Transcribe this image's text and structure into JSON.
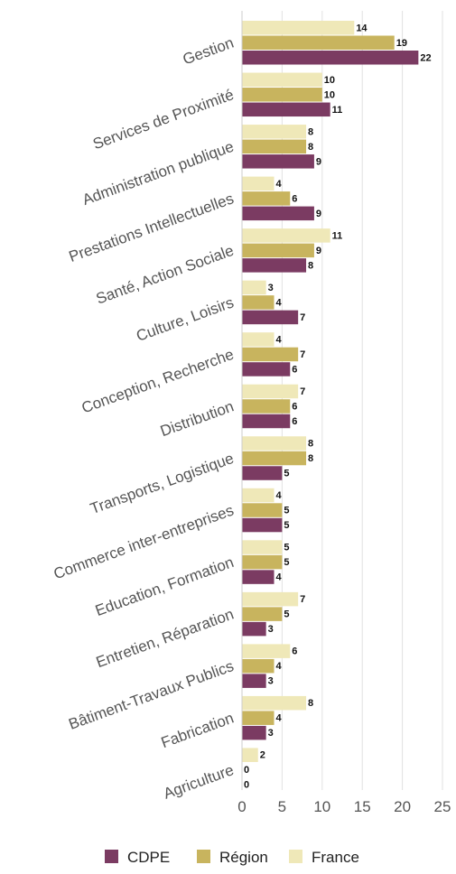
{
  "chart_data": {
    "type": "bar",
    "orientation": "horizontal",
    "categories": [
      "Gestion",
      "Services de Proximité",
      "Administration publique",
      "Prestations Intellectuelles",
      "Santé, Action Sociale",
      "Culture, Loisirs",
      "Conception, Recherche",
      "Distribution",
      "Transports, Logistique",
      "Commerce inter-entreprises",
      "Education, Formation",
      "Entretien, Réparation",
      "Bâtiment-Travaux Publics",
      "Fabrication",
      "Agriculture"
    ],
    "series": [
      {
        "name": "France",
        "color": "#efe8b8",
        "values": [
          14,
          10,
          8,
          4,
          11,
          3,
          4,
          7,
          8,
          4,
          5,
          7,
          6,
          8,
          2
        ]
      },
      {
        "name": "Région",
        "color": "#c8b45e",
        "values": [
          19,
          10,
          8,
          6,
          9,
          4,
          7,
          6,
          8,
          5,
          5,
          5,
          4,
          4,
          0
        ]
      },
      {
        "name": "CDPE",
        "color": "#7b3b62",
        "values": [
          22,
          11,
          9,
          9,
          8,
          7,
          6,
          6,
          5,
          5,
          4,
          3,
          3,
          3,
          0
        ]
      }
    ],
    "xticks": [
      0,
      5,
      10,
      15,
      20,
      25
    ],
    "xlim": [
      0,
      25
    ],
    "grid": true,
    "legend_position": "bottom",
    "legend_order": [
      "CDPE",
      "Région",
      "France"
    ],
    "title": "",
    "xlabel": "",
    "ylabel": ""
  }
}
